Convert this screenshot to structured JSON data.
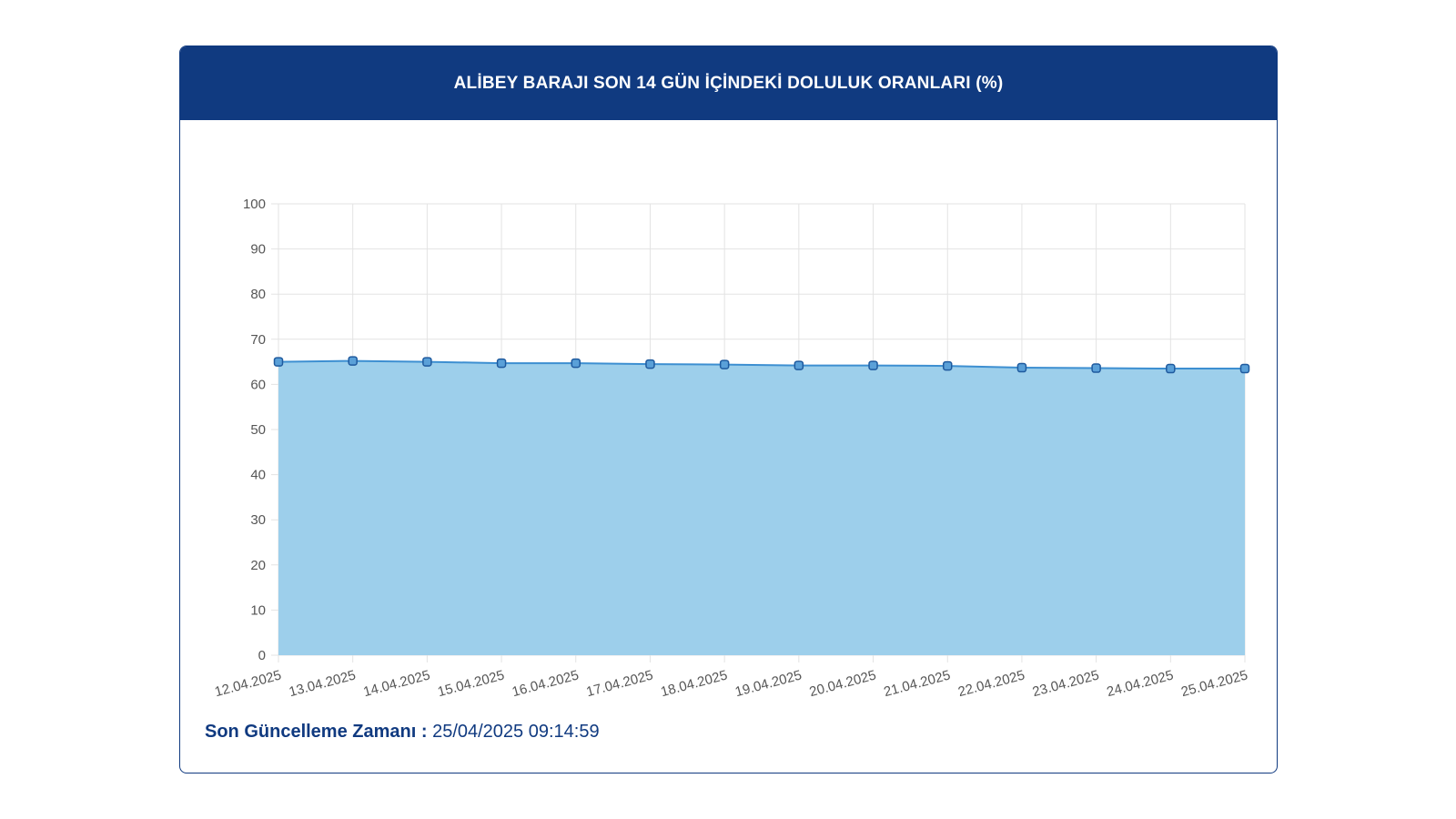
{
  "header": {
    "title": "ALİBEY BARAJI SON 14 GÜN İÇİNDEKİ DOLULUK ORANLARI (%)"
  },
  "footer": {
    "label": "Son Güncelleme Zamanı :",
    "value": "25/04/2025 09:14:59"
  },
  "colors": {
    "header_bg": "#103a80",
    "line": "#3d8fd1",
    "fill": "#9dcfeb",
    "point_fill": "#5aa0d8",
    "point_stroke": "#1f5a9e",
    "grid": "#e3e3e3",
    "tick_text": "#555555"
  },
  "chart_data": {
    "type": "area",
    "title": "ALİBEY BARAJI SON 14 GÜN İÇİNDEKİ DOLULUK ORANLARI (%)",
    "xlabel": "",
    "ylabel": "",
    "ylim": [
      0,
      100
    ],
    "yticks": [
      0,
      10,
      20,
      30,
      40,
      50,
      60,
      70,
      80,
      90,
      100
    ],
    "grid": true,
    "legend": "none",
    "categories": [
      "12.04.2025",
      "13.04.2025",
      "14.04.2025",
      "15.04.2025",
      "16.04.2025",
      "17.04.2025",
      "18.04.2025",
      "19.04.2025",
      "20.04.2025",
      "21.04.2025",
      "22.04.2025",
      "23.04.2025",
      "24.04.2025",
      "25.04.2025"
    ],
    "series": [
      {
        "values": [
          65.0,
          65.2,
          65.0,
          64.7,
          64.7,
          64.5,
          64.4,
          64.2,
          64.2,
          64.1,
          63.7,
          63.6,
          63.5,
          63.5
        ]
      }
    ]
  }
}
